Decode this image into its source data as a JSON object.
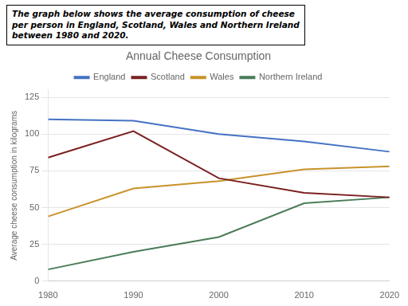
{
  "chart_data": {
    "type": "line",
    "title": "Annual Cheese Consumption",
    "annotations": [
      "The graph below shows the average consumption of cheese\nper person in England, Scotland, Wales and Northern Ireland\nbetween 1980 and 2020."
    ],
    "ylabel": "Average cheese consumption in kilograms",
    "x": [
      1980,
      1990,
      2000,
      2010,
      2020
    ],
    "series": [
      {
        "name": "England",
        "color": "#4472c4",
        "values": [
          110,
          109,
          100,
          95,
          88
        ]
      },
      {
        "name": "Scotland",
        "color": "#7B2020",
        "values": [
          84,
          102,
          70,
          60,
          57
        ]
      },
      {
        "name": "Wales",
        "color": "#C8922A",
        "values": [
          44,
          63,
          68,
          76,
          78
        ]
      },
      {
        "name": "Northern Ireland",
        "color": "#4a7c59",
        "values": [
          8,
          20,
          30,
          53,
          57
        ]
      }
    ],
    "xlim": [
      1980,
      2020
    ],
    "xticks": [
      1980,
      1990,
      2000,
      2010,
      2020
    ],
    "ylim": [
      0,
      130
    ],
    "yticks": [
      0,
      25,
      50,
      75,
      100,
      125
    ],
    "grid": "y",
    "legend": "top"
  }
}
